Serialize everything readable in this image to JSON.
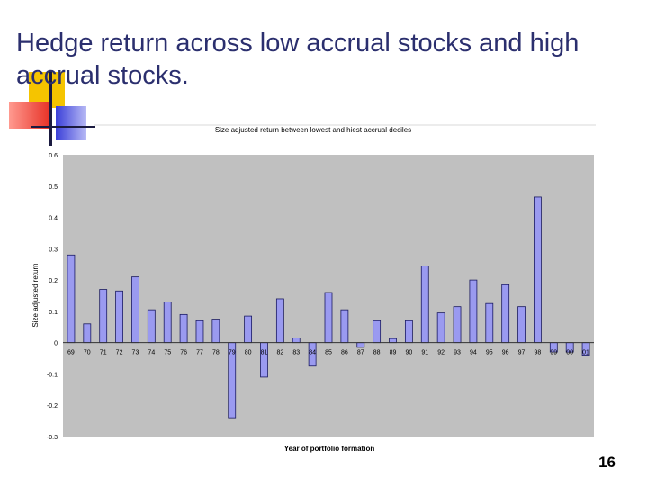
{
  "slide": {
    "title": "Hedge return across low accrual stocks and high accrual stocks.",
    "page_number": "16"
  },
  "colors": {
    "title": "#2b2f6e",
    "bar_fill": "#9a9af0",
    "bar_stroke": "#1a1a60",
    "plot_bg": "#c0c0c0",
    "deco_yellow": "#f5c400",
    "deco_red": "#e8352a",
    "deco_blue": "#3a3fd8"
  },
  "chart_data": {
    "type": "bar",
    "title": "Size adjusted return between lowest and hiest accrual deciles",
    "xlabel": "Year of portfolio formation",
    "ylabel": "Size adjusted return",
    "ylim": [
      -0.3,
      0.6
    ],
    "yticks": [
      0.6,
      0.5,
      0.4,
      0.3,
      0.2,
      0.1,
      0,
      -0.1,
      -0.2,
      -0.3
    ],
    "grid": false,
    "legend": "none",
    "categories": [
      "69",
      "70",
      "71",
      "72",
      "73",
      "74",
      "75",
      "76",
      "77",
      "78",
      "79",
      "80",
      "81",
      "82",
      "83",
      "84",
      "85",
      "86",
      "87",
      "88",
      "89",
      "90",
      "91",
      "92",
      "93",
      "94",
      "95",
      "96",
      "97",
      "98",
      "99",
      "00",
      "01"
    ],
    "values": [
      0.28,
      0.06,
      0.17,
      0.165,
      0.21,
      0.105,
      0.13,
      0.09,
      0.07,
      0.075,
      -0.24,
      0.085,
      -0.11,
      0.14,
      0.015,
      -0.075,
      0.16,
      0.105,
      -0.015,
      0.07,
      0.013,
      0.07,
      0.245,
      0.095,
      0.115,
      0.2,
      0.125,
      0.185,
      0.115,
      0.465,
      -0.03,
      -0.03,
      -0.04
    ]
  }
}
